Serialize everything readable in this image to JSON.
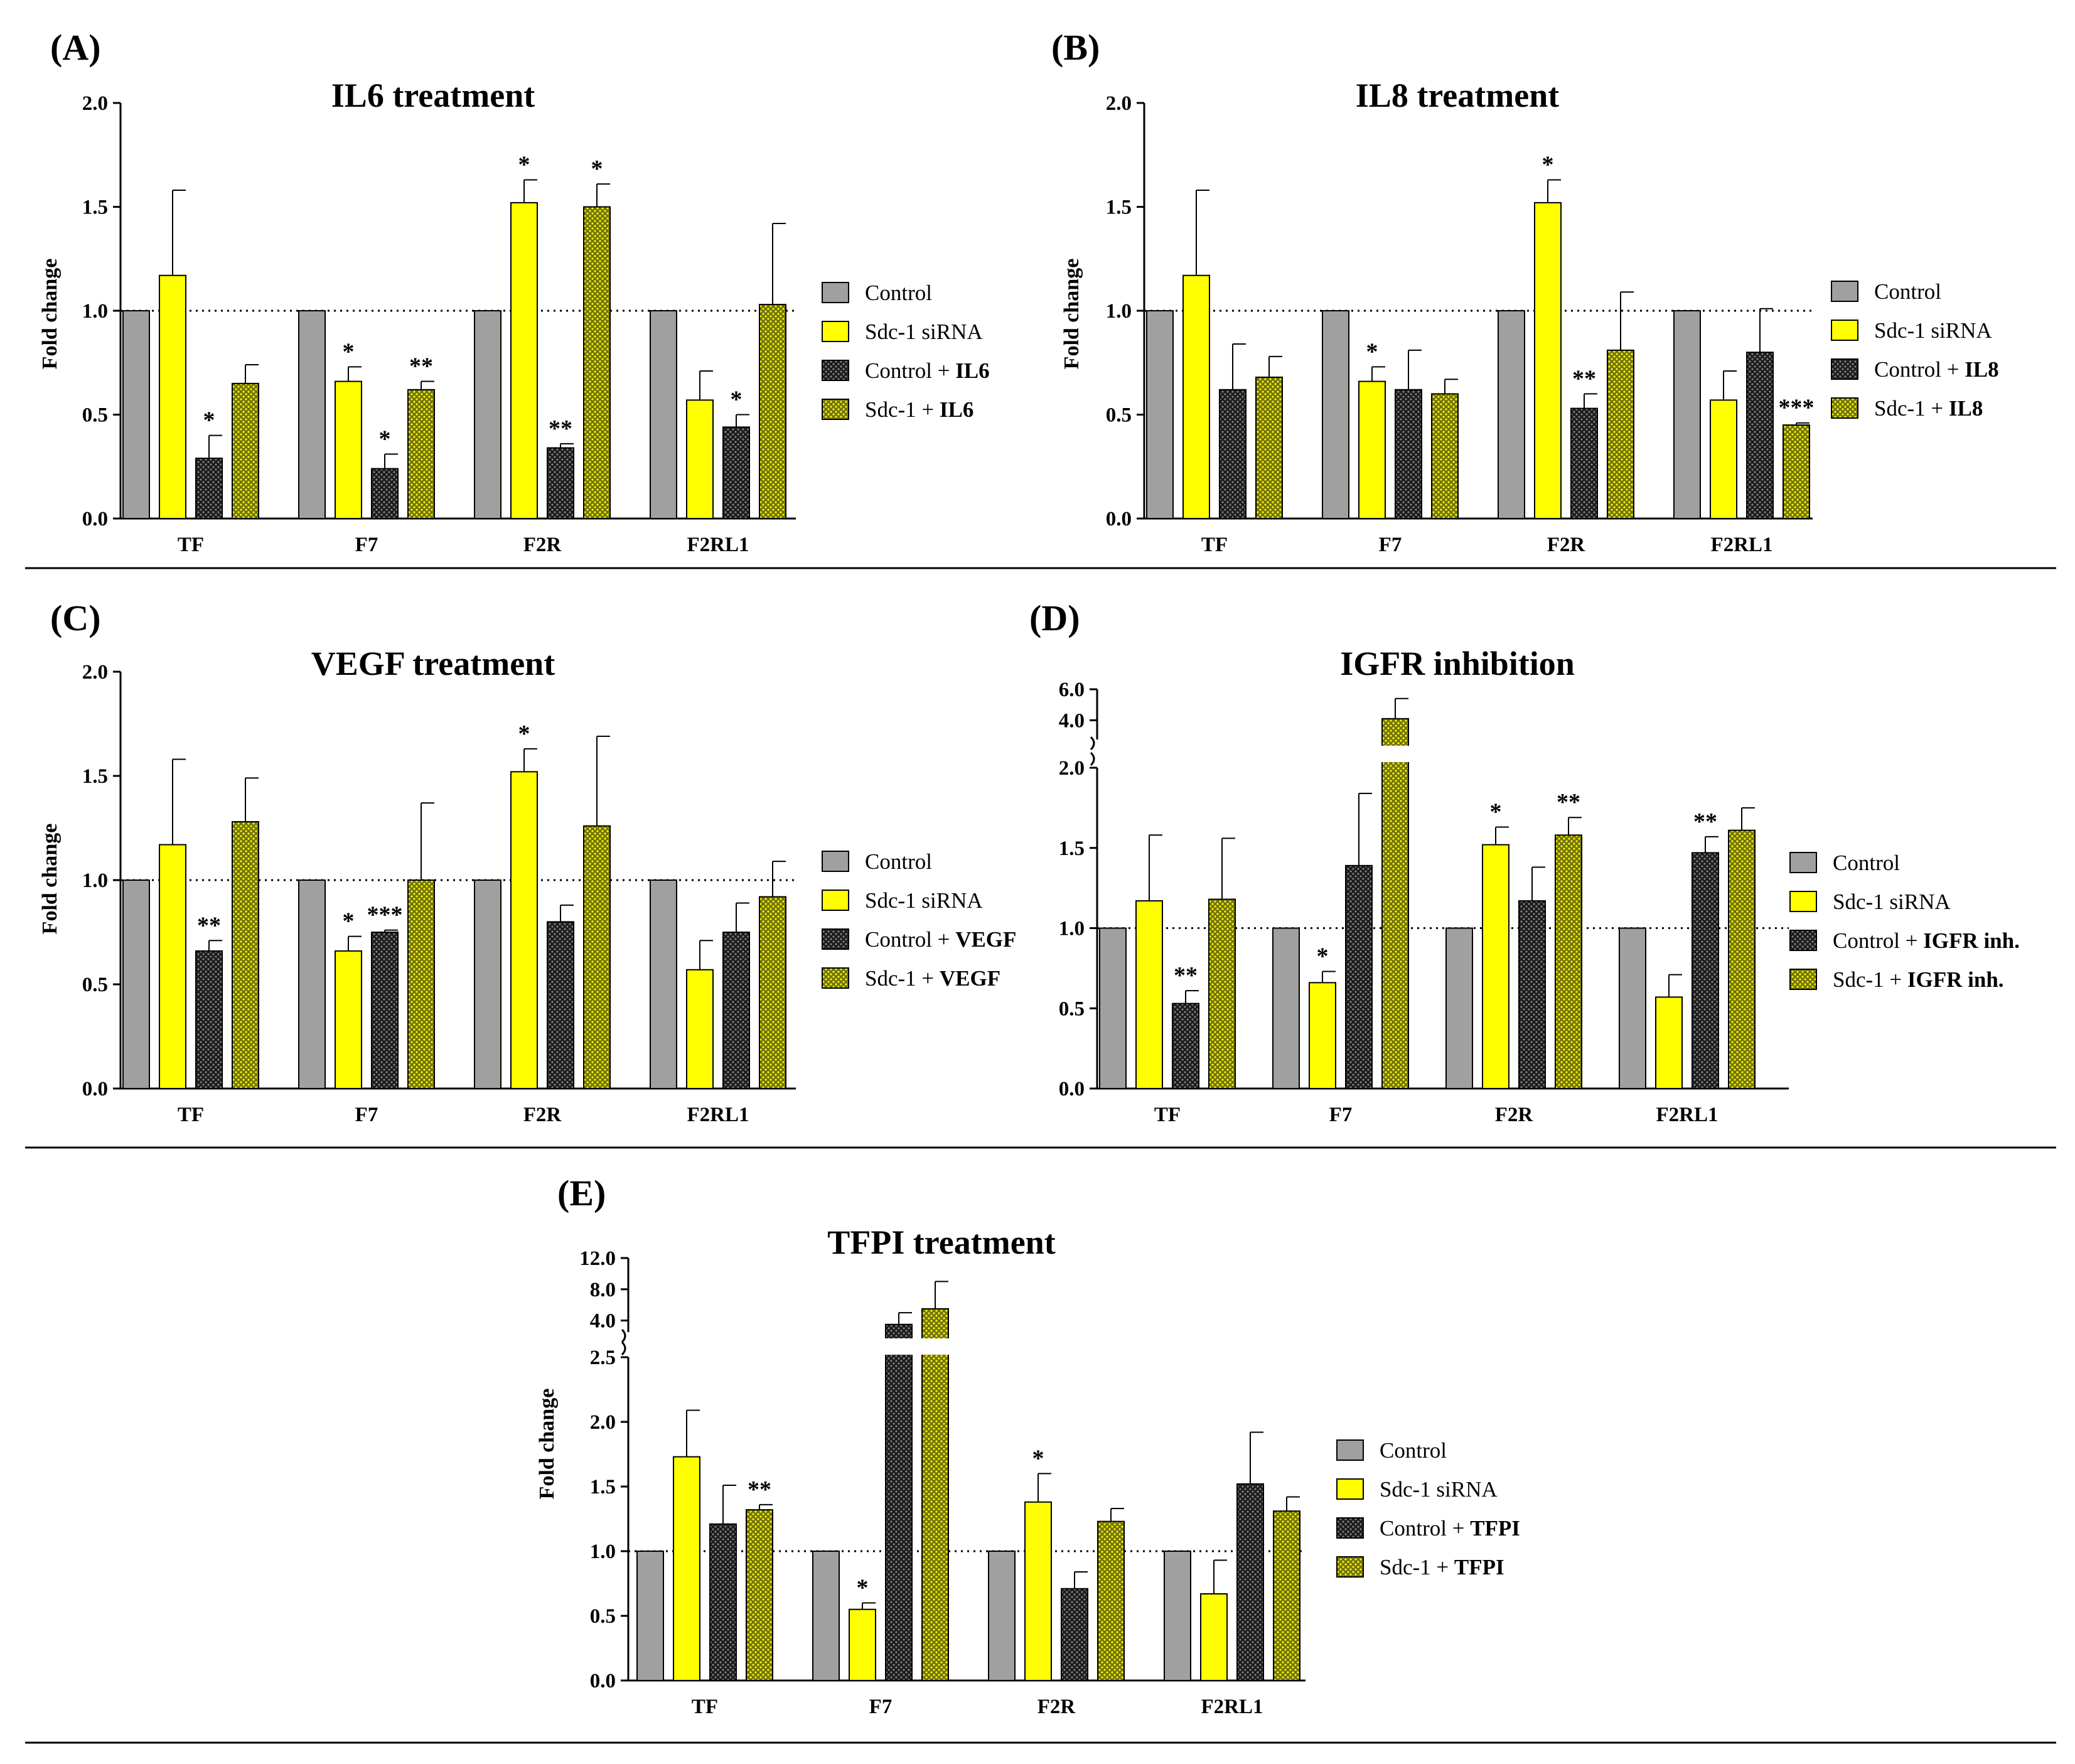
{
  "figure": {
    "colors": {
      "control": "#a0a0a0",
      "sdc1_sirna": "#ffff00",
      "control_treat": "#4a4a4a",
      "sdc1_treat": "#b8b830",
      "separator": "#000000"
    }
  },
  "chart_data": [
    {
      "panel": "(A)",
      "type": "bar",
      "title": "IL6 treatment",
      "ylabel": "Fold change",
      "ylim": [
        0,
        2.0
      ],
      "yticks": [
        "0.0",
        "0.5",
        "1.0",
        "1.5",
        "2.0"
      ],
      "reference_line": 1.0,
      "categories": [
        "TF",
        "F7",
        "F2R",
        "F2RL1"
      ],
      "series": [
        {
          "name": "Control",
          "bold_suffix": "",
          "values": [
            1.0,
            1.0,
            1.0,
            1.0
          ],
          "errors": [
            0,
            0,
            0,
            0
          ],
          "stars": [
            "",
            "",
            "",
            ""
          ]
        },
        {
          "name": "Sdc-1 siRNA",
          "bold_suffix": "",
          "values": [
            1.17,
            0.66,
            1.52,
            0.57
          ],
          "errors": [
            0.41,
            0.07,
            0.11,
            0.14
          ],
          "stars": [
            "",
            "*",
            "*",
            ""
          ]
        },
        {
          "name": "Control + ",
          "bold_suffix": "IL6",
          "values": [
            0.29,
            0.24,
            0.34,
            0.44
          ],
          "errors": [
            0.11,
            0.07,
            0.02,
            0.06
          ],
          "stars": [
            "*",
            "*",
            "**",
            "*"
          ]
        },
        {
          "name": "Sdc-1 + ",
          "bold_suffix": "IL6",
          "values": [
            0.65,
            0.62,
            1.5,
            1.03
          ],
          "errors": [
            0.09,
            0.04,
            0.11,
            0.39
          ],
          "stars": [
            "",
            "**",
            "*",
            ""
          ]
        }
      ]
    },
    {
      "panel": "(B)",
      "type": "bar",
      "title": "IL8 treatment",
      "ylabel": "Fold change",
      "ylim": [
        0,
        2.0
      ],
      "yticks": [
        "0.0",
        "0.5",
        "1.0",
        "1.5",
        "2.0"
      ],
      "reference_line": 1.0,
      "categories": [
        "TF",
        "F7",
        "F2R",
        "F2RL1"
      ],
      "series": [
        {
          "name": "Control",
          "bold_suffix": "",
          "values": [
            1.0,
            1.0,
            1.0,
            1.0
          ],
          "errors": [
            0,
            0,
            0,
            0
          ],
          "stars": [
            "",
            "",
            "",
            ""
          ]
        },
        {
          "name": "Sdc-1 siRNA",
          "bold_suffix": "",
          "values": [
            1.17,
            0.66,
            1.52,
            0.57
          ],
          "errors": [
            0.41,
            0.07,
            0.11,
            0.14
          ],
          "stars": [
            "",
            "*",
            "*",
            ""
          ]
        },
        {
          "name": "Control + ",
          "bold_suffix": "IL8",
          "values": [
            0.62,
            0.62,
            0.53,
            0.8
          ],
          "errors": [
            0.22,
            0.19,
            0.07,
            0.21
          ],
          "stars": [
            "",
            "",
            "**",
            ""
          ]
        },
        {
          "name": "Sdc-1 + ",
          "bold_suffix": "IL8",
          "values": [
            0.68,
            0.6,
            0.81,
            0.45
          ],
          "errors": [
            0.1,
            0.07,
            0.28,
            0.01
          ],
          "stars": [
            "",
            "",
            "",
            "***"
          ]
        }
      ]
    },
    {
      "panel": "(C)",
      "type": "bar",
      "title": "VEGF treatment",
      "ylabel": "Fold change",
      "ylim": [
        0,
        2.0
      ],
      "yticks": [
        "0.0",
        "0.5",
        "1.0",
        "1.5",
        "2.0"
      ],
      "reference_line": 1.0,
      "categories": [
        "TF",
        "F7",
        "F2R",
        "F2RL1"
      ],
      "series": [
        {
          "name": "Control",
          "bold_suffix": "",
          "values": [
            1.0,
            1.0,
            1.0,
            1.0
          ],
          "errors": [
            0,
            0,
            0,
            0
          ],
          "stars": [
            "",
            "",
            "",
            ""
          ]
        },
        {
          "name": "Sdc-1 siRNA",
          "bold_suffix": "",
          "values": [
            1.17,
            0.66,
            1.52,
            0.57
          ],
          "errors": [
            0.41,
            0.07,
            0.11,
            0.14
          ],
          "stars": [
            "",
            "*",
            "*",
            ""
          ]
        },
        {
          "name": "Control + ",
          "bold_suffix": "VEGF",
          "values": [
            0.66,
            0.75,
            0.8,
            0.75
          ],
          "errors": [
            0.05,
            0.01,
            0.08,
            0.14
          ],
          "stars": [
            "**",
            "***",
            "",
            ""
          ]
        },
        {
          "name": "Sdc-1 + ",
          "bold_suffix": "VEGF",
          "values": [
            1.28,
            1.0,
            1.26,
            0.92
          ],
          "errors": [
            0.21,
            0.37,
            0.43,
            0.17
          ],
          "stars": [
            "",
            "",
            "",
            ""
          ]
        }
      ]
    },
    {
      "panel": "(D)",
      "type": "bar",
      "title": "IGFR inhibition",
      "ylabel": "",
      "ylim": [
        0,
        6.0
      ],
      "axis_break": {
        "lower_max": 2.0,
        "upper_min": 3.0,
        "upper_max": 6.0
      },
      "yticks": [
        "0.0",
        "0.5",
        "1.0",
        "1.5",
        "2.0"
      ],
      "yticks_upper": [
        "4.0",
        "6.0"
      ],
      "reference_line": 1.0,
      "categories": [
        "TF",
        "F7",
        "F2R",
        "F2RL1"
      ],
      "series": [
        {
          "name": "Control",
          "bold_suffix": "",
          "values": [
            1.0,
            1.0,
            1.0,
            1.0
          ],
          "errors": [
            0,
            0,
            0,
            0
          ],
          "stars": [
            "",
            "",
            "",
            ""
          ]
        },
        {
          "name": "Sdc-1 siRNA",
          "bold_suffix": "",
          "values": [
            1.17,
            0.66,
            1.52,
            0.57
          ],
          "errors": [
            0.41,
            0.07,
            0.11,
            0.14
          ],
          "stars": [
            "",
            "*",
            "*",
            ""
          ]
        },
        {
          "name": "Control + ",
          "bold_suffix": "IGFR inh.",
          "values": [
            0.53,
            1.39,
            1.17,
            1.47
          ],
          "errors": [
            0.08,
            0.45,
            0.21,
            0.1
          ],
          "stars": [
            "**",
            "",
            "",
            "**"
          ]
        },
        {
          "name": "Sdc-1 + ",
          "bold_suffix": "IGFR inh.",
          "values": [
            1.18,
            4.1,
            1.58,
            1.61
          ],
          "errors": [
            0.38,
            1.3,
            0.11,
            0.14
          ],
          "stars": [
            "",
            "",
            "**",
            ""
          ]
        }
      ]
    },
    {
      "panel": "(E)",
      "type": "bar",
      "title": "TFPI treatment",
      "ylabel": "Fold change",
      "ylim": [
        0,
        12.0
      ],
      "axis_break": {
        "lower_max": 2.5,
        "upper_min": 3.0,
        "upper_max": 12.0
      },
      "yticks": [
        "0.0",
        "0.5",
        "1.0",
        "1.5",
        "2.0",
        "2.5"
      ],
      "yticks_upper": [
        "4.0",
        "8.0",
        "12.0"
      ],
      "reference_line": 1.0,
      "categories": [
        "TF",
        "F7",
        "F2R",
        "F2RL1"
      ],
      "series": [
        {
          "name": "Control",
          "bold_suffix": "",
          "values": [
            1.0,
            1.0,
            1.0,
            1.0
          ],
          "errors": [
            0,
            0,
            0,
            0
          ],
          "stars": [
            "",
            "",
            "",
            ""
          ]
        },
        {
          "name": "Sdc-1 siRNA",
          "bold_suffix": "",
          "values": [
            1.73,
            0.55,
            1.38,
            0.67
          ],
          "errors": [
            0.36,
            0.05,
            0.22,
            0.26
          ],
          "stars": [
            "",
            "*",
            "*",
            ""
          ]
        },
        {
          "name": "Control + ",
          "bold_suffix": "TFPI",
          "values": [
            1.21,
            3.5,
            0.71,
            1.52
          ],
          "errors": [
            0.3,
            1.5,
            0.13,
            0.4
          ],
          "stars": [
            "",
            "",
            "",
            ""
          ]
        },
        {
          "name": "Sdc-1 + ",
          "bold_suffix": "TFPI",
          "values": [
            1.32,
            5.5,
            1.23,
            1.31
          ],
          "errors": [
            0.04,
            3.5,
            0.1,
            0.11
          ],
          "stars": [
            "**",
            "",
            "",
            ""
          ]
        }
      ]
    }
  ]
}
